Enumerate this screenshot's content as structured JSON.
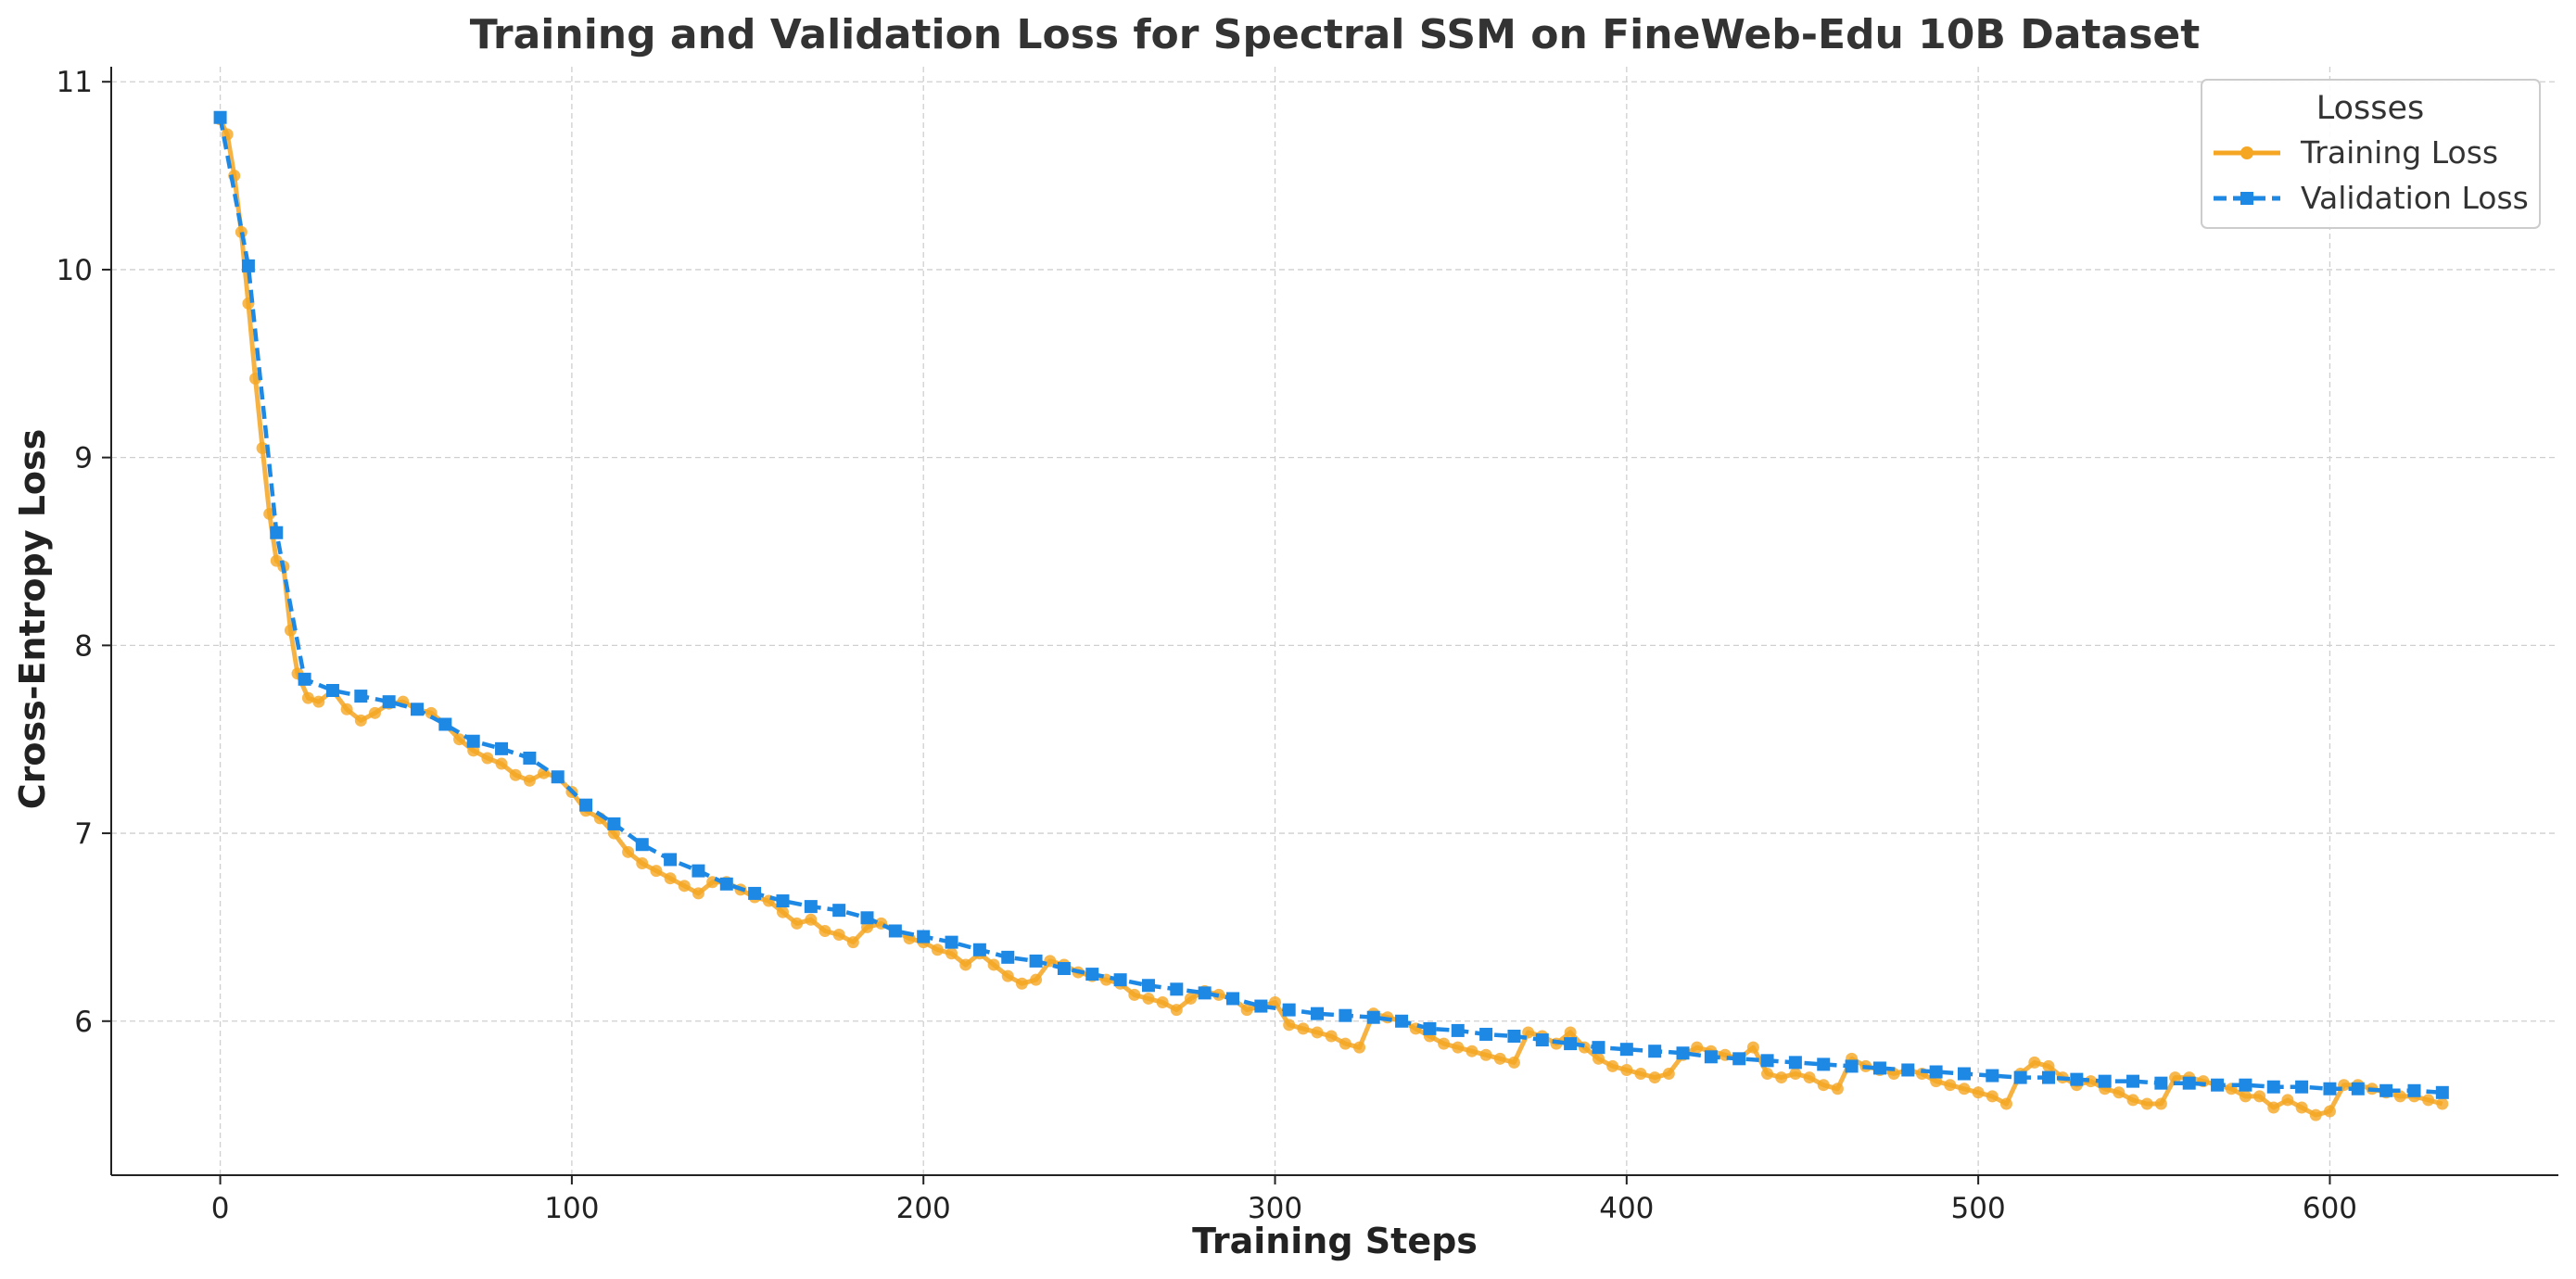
{
  "chart_data": {
    "type": "line",
    "title": "Training and Validation Loss for Spectral SSM on FineWeb-Edu 10B Dataset",
    "xlabel": "Training Steps",
    "ylabel": "Cross-Entropy Loss",
    "xlim": [
      -31,
      665
    ],
    "ylim": [
      5.18,
      11.08
    ],
    "xticks": [
      0,
      100,
      200,
      300,
      400,
      500,
      600
    ],
    "yticks": [
      6,
      7,
      8,
      9,
      10,
      11
    ],
    "grid": true,
    "legend": {
      "title": "Losses",
      "position": "top-right"
    },
    "series": [
      {
        "name": "Training Loss",
        "color": "#f5a623",
        "marker": "circle",
        "style": "solid",
        "points": [
          [
            0,
            10.8
          ],
          [
            2,
            10.72
          ],
          [
            4,
            10.5
          ],
          [
            6,
            10.2
          ],
          [
            8,
            9.82
          ],
          [
            10,
            9.42
          ],
          [
            12,
            9.05
          ],
          [
            14,
            8.7
          ],
          [
            16,
            8.45
          ],
          [
            18,
            8.42
          ],
          [
            20,
            8.08
          ],
          [
            22,
            7.85
          ],
          [
            25,
            7.72
          ],
          [
            28,
            7.7
          ],
          [
            32,
            7.76
          ],
          [
            36,
            7.66
          ],
          [
            40,
            7.6
          ],
          [
            44,
            7.64
          ],
          [
            48,
            7.69
          ],
          [
            52,
            7.7
          ],
          [
            56,
            7.66
          ],
          [
            60,
            7.64
          ],
          [
            64,
            7.58
          ],
          [
            68,
            7.5
          ],
          [
            72,
            7.44
          ],
          [
            76,
            7.4
          ],
          [
            80,
            7.37
          ],
          [
            84,
            7.31
          ],
          [
            88,
            7.28
          ],
          [
            92,
            7.32
          ],
          [
            96,
            7.3
          ],
          [
            100,
            7.22
          ],
          [
            104,
            7.12
          ],
          [
            108,
            7.08
          ],
          [
            112,
            7.0
          ],
          [
            116,
            6.9
          ],
          [
            120,
            6.84
          ],
          [
            124,
            6.8
          ],
          [
            128,
            6.76
          ],
          [
            132,
            6.72
          ],
          [
            136,
            6.68
          ],
          [
            140,
            6.74
          ],
          [
            144,
            6.74
          ],
          [
            148,
            6.7
          ],
          [
            152,
            6.66
          ],
          [
            156,
            6.64
          ],
          [
            160,
            6.58
          ],
          [
            164,
            6.52
          ],
          [
            168,
            6.54
          ],
          [
            172,
            6.48
          ],
          [
            176,
            6.46
          ],
          [
            180,
            6.42
          ],
          [
            184,
            6.5
          ],
          [
            188,
            6.52
          ],
          [
            192,
            6.48
          ],
          [
            196,
            6.44
          ],
          [
            200,
            6.42
          ],
          [
            204,
            6.38
          ],
          [
            208,
            6.36
          ],
          [
            212,
            6.3
          ],
          [
            216,
            6.36
          ],
          [
            220,
            6.3
          ],
          [
            224,
            6.24
          ],
          [
            228,
            6.2
          ],
          [
            232,
            6.22
          ],
          [
            236,
            6.32
          ],
          [
            240,
            6.3
          ],
          [
            244,
            6.26
          ],
          [
            248,
            6.24
          ],
          [
            252,
            6.22
          ],
          [
            256,
            6.2
          ],
          [
            260,
            6.14
          ],
          [
            264,
            6.12
          ],
          [
            268,
            6.1
          ],
          [
            272,
            6.06
          ],
          [
            276,
            6.12
          ],
          [
            280,
            6.16
          ],
          [
            284,
            6.14
          ],
          [
            288,
            6.12
          ],
          [
            292,
            6.06
          ],
          [
            296,
            6.08
          ],
          [
            300,
            6.1
          ],
          [
            304,
            5.98
          ],
          [
            308,
            5.96
          ],
          [
            312,
            5.94
          ],
          [
            316,
            5.92
          ],
          [
            320,
            5.88
          ],
          [
            324,
            5.86
          ],
          [
            328,
            6.04
          ],
          [
            332,
            6.02
          ],
          [
            336,
            6.0
          ],
          [
            340,
            5.96
          ],
          [
            344,
            5.92
          ],
          [
            348,
            5.88
          ],
          [
            352,
            5.86
          ],
          [
            356,
            5.84
          ],
          [
            360,
            5.82
          ],
          [
            364,
            5.8
          ],
          [
            368,
            5.78
          ],
          [
            372,
            5.94
          ],
          [
            376,
            5.92
          ],
          [
            380,
            5.88
          ],
          [
            384,
            5.94
          ],
          [
            388,
            5.86
          ],
          [
            392,
            5.8
          ],
          [
            396,
            5.76
          ],
          [
            400,
            5.74
          ],
          [
            404,
            5.72
          ],
          [
            408,
            5.7
          ],
          [
            412,
            5.72
          ],
          [
            416,
            5.82
          ],
          [
            420,
            5.86
          ],
          [
            424,
            5.84
          ],
          [
            428,
            5.82
          ],
          [
            432,
            5.8
          ],
          [
            436,
            5.86
          ],
          [
            440,
            5.72
          ],
          [
            444,
            5.7
          ],
          [
            448,
            5.72
          ],
          [
            452,
            5.7
          ],
          [
            456,
            5.66
          ],
          [
            460,
            5.64
          ],
          [
            464,
            5.8
          ],
          [
            468,
            5.76
          ],
          [
            472,
            5.74
          ],
          [
            476,
            5.72
          ],
          [
            480,
            5.74
          ],
          [
            484,
            5.72
          ],
          [
            488,
            5.68
          ],
          [
            492,
            5.66
          ],
          [
            496,
            5.64
          ],
          [
            500,
            5.62
          ],
          [
            504,
            5.6
          ],
          [
            508,
            5.56
          ],
          [
            512,
            5.72
          ],
          [
            516,
            5.78
          ],
          [
            520,
            5.76
          ],
          [
            524,
            5.7
          ],
          [
            528,
            5.66
          ],
          [
            532,
            5.68
          ],
          [
            536,
            5.64
          ],
          [
            540,
            5.62
          ],
          [
            544,
            5.58
          ],
          [
            548,
            5.56
          ],
          [
            552,
            5.56
          ],
          [
            556,
            5.7
          ],
          [
            560,
            5.7
          ],
          [
            564,
            5.68
          ],
          [
            568,
            5.66
          ],
          [
            572,
            5.64
          ],
          [
            576,
            5.6
          ],
          [
            580,
            5.6
          ],
          [
            584,
            5.54
          ],
          [
            588,
            5.58
          ],
          [
            592,
            5.54
          ],
          [
            596,
            5.5
          ],
          [
            600,
            5.52
          ],
          [
            604,
            5.66
          ],
          [
            608,
            5.66
          ],
          [
            612,
            5.64
          ],
          [
            616,
            5.62
          ],
          [
            620,
            5.6
          ],
          [
            624,
            5.6
          ],
          [
            628,
            5.58
          ],
          [
            632,
            5.56
          ]
        ]
      },
      {
        "name": "Validation Loss",
        "color": "#1e88e5",
        "marker": "square",
        "style": "dashed",
        "points": [
          [
            0,
            10.81
          ],
          [
            8,
            10.02
          ],
          [
            16,
            8.6
          ],
          [
            24,
            7.82
          ],
          [
            32,
            7.76
          ],
          [
            40,
            7.73
          ],
          [
            48,
            7.7
          ],
          [
            56,
            7.66
          ],
          [
            64,
            7.58
          ],
          [
            72,
            7.49
          ],
          [
            80,
            7.45
          ],
          [
            88,
            7.4
          ],
          [
            96,
            7.3
          ],
          [
            104,
            7.15
          ],
          [
            112,
            7.05
          ],
          [
            120,
            6.94
          ],
          [
            128,
            6.86
          ],
          [
            136,
            6.8
          ],
          [
            144,
            6.73
          ],
          [
            152,
            6.68
          ],
          [
            160,
            6.64
          ],
          [
            168,
            6.61
          ],
          [
            176,
            6.59
          ],
          [
            184,
            6.55
          ],
          [
            192,
            6.48
          ],
          [
            200,
            6.45
          ],
          [
            208,
            6.42
          ],
          [
            216,
            6.38
          ],
          [
            224,
            6.34
          ],
          [
            232,
            6.32
          ],
          [
            240,
            6.28
          ],
          [
            248,
            6.25
          ],
          [
            256,
            6.22
          ],
          [
            264,
            6.19
          ],
          [
            272,
            6.17
          ],
          [
            280,
            6.15
          ],
          [
            288,
            6.12
          ],
          [
            296,
            6.08
          ],
          [
            304,
            6.06
          ],
          [
            312,
            6.04
          ],
          [
            320,
            6.03
          ],
          [
            328,
            6.02
          ],
          [
            336,
            6.0
          ],
          [
            344,
            5.96
          ],
          [
            352,
            5.95
          ],
          [
            360,
            5.93
          ],
          [
            368,
            5.92
          ],
          [
            376,
            5.9
          ],
          [
            384,
            5.88
          ],
          [
            392,
            5.86
          ],
          [
            400,
            5.85
          ],
          [
            408,
            5.84
          ],
          [
            416,
            5.83
          ],
          [
            424,
            5.81
          ],
          [
            432,
            5.8
          ],
          [
            440,
            5.79
          ],
          [
            448,
            5.78
          ],
          [
            456,
            5.77
          ],
          [
            464,
            5.76
          ],
          [
            472,
            5.75
          ],
          [
            480,
            5.74
          ],
          [
            488,
            5.73
          ],
          [
            496,
            5.72
          ],
          [
            504,
            5.71
          ],
          [
            512,
            5.7
          ],
          [
            520,
            5.7
          ],
          [
            528,
            5.69
          ],
          [
            536,
            5.68
          ],
          [
            544,
            5.68
          ],
          [
            552,
            5.67
          ],
          [
            560,
            5.67
          ],
          [
            568,
            5.66
          ],
          [
            576,
            5.66
          ],
          [
            584,
            5.65
          ],
          [
            592,
            5.65
          ],
          [
            600,
            5.64
          ],
          [
            608,
            5.64
          ],
          [
            616,
            5.63
          ],
          [
            624,
            5.63
          ],
          [
            632,
            5.62
          ]
        ]
      }
    ]
  }
}
